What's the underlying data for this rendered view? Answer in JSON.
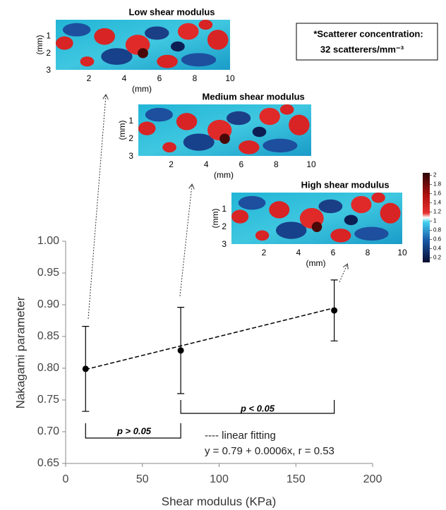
{
  "chart_data": {
    "type": "scatter",
    "xlabel": "Shear modulus (KPa)",
    "ylabel": "Nakagami parameter",
    "x": [
      13,
      75,
      175
    ],
    "values": [
      0.799,
      0.828,
      0.891
    ],
    "errors": [
      0.067,
      0.068,
      0.048
    ],
    "color": "#000000",
    "xlim": [
      0,
      200
    ],
    "xticks": [
      0,
      50,
      100,
      150,
      200
    ],
    "ylim": [
      0.65,
      1.0
    ],
    "yticks": [
      0.65,
      {
        "value": 0.7,
        "label": "0.70"
      },
      0.75,
      {
        "value": 0.8,
        "label": "0.80"
      },
      0.85,
      {
        "value": 0.9,
        "label": "0.90"
      },
      0.95,
      {
        "value": 1.0,
        "label": "1.00"
      }
    ],
    "fit": {
      "x": [
        13,
        175
      ],
      "values": [
        0.798,
        0.895
      ]
    },
    "annotations": {
      "p_left": "p > 0.05",
      "p_right": "p < 0.05",
      "legend": "---- linear fitting",
      "equation": "y = 0.79 + 0.0006x, r = 0.53",
      "note_title": "*Scatterer concentration:",
      "note_value": "32 scatterers/mm⁻³"
    },
    "insets": [
      {
        "title": "Low shear modulus",
        "xlabel": "(mm)",
        "ylabel": "(mm)",
        "xlim": [
          0,
          10
        ],
        "ylim": [
          0,
          3
        ],
        "xticks": [
          2,
          4,
          6,
          8,
          10
        ],
        "yticks": [
          1,
          2,
          3
        ]
      },
      {
        "title": "Medium shear modulus",
        "xlabel": "(mm)",
        "ylabel": "(mm)",
        "xlim": [
          0,
          10
        ],
        "ylim": [
          0,
          3
        ],
        "xticks": [
          2,
          4,
          6,
          8,
          10
        ],
        "yticks": [
          1,
          2,
          3
        ]
      },
      {
        "title": "High shear modulus",
        "xlabel": "(mm)",
        "ylabel": "(mm)",
        "xlim": [
          0,
          10
        ],
        "ylim": [
          0,
          3
        ],
        "xticks": [
          2,
          4,
          6,
          8,
          10
        ],
        "yticks": [
          1,
          2,
          3
        ]
      }
    ],
    "colorbar": {
      "lim": [
        0.1,
        2.05
      ],
      "ticks": [
        2,
        1.8,
        1.6,
        1.4,
        1.2,
        1,
        0.8,
        0.6,
        0.4,
        0.2
      ]
    }
  }
}
